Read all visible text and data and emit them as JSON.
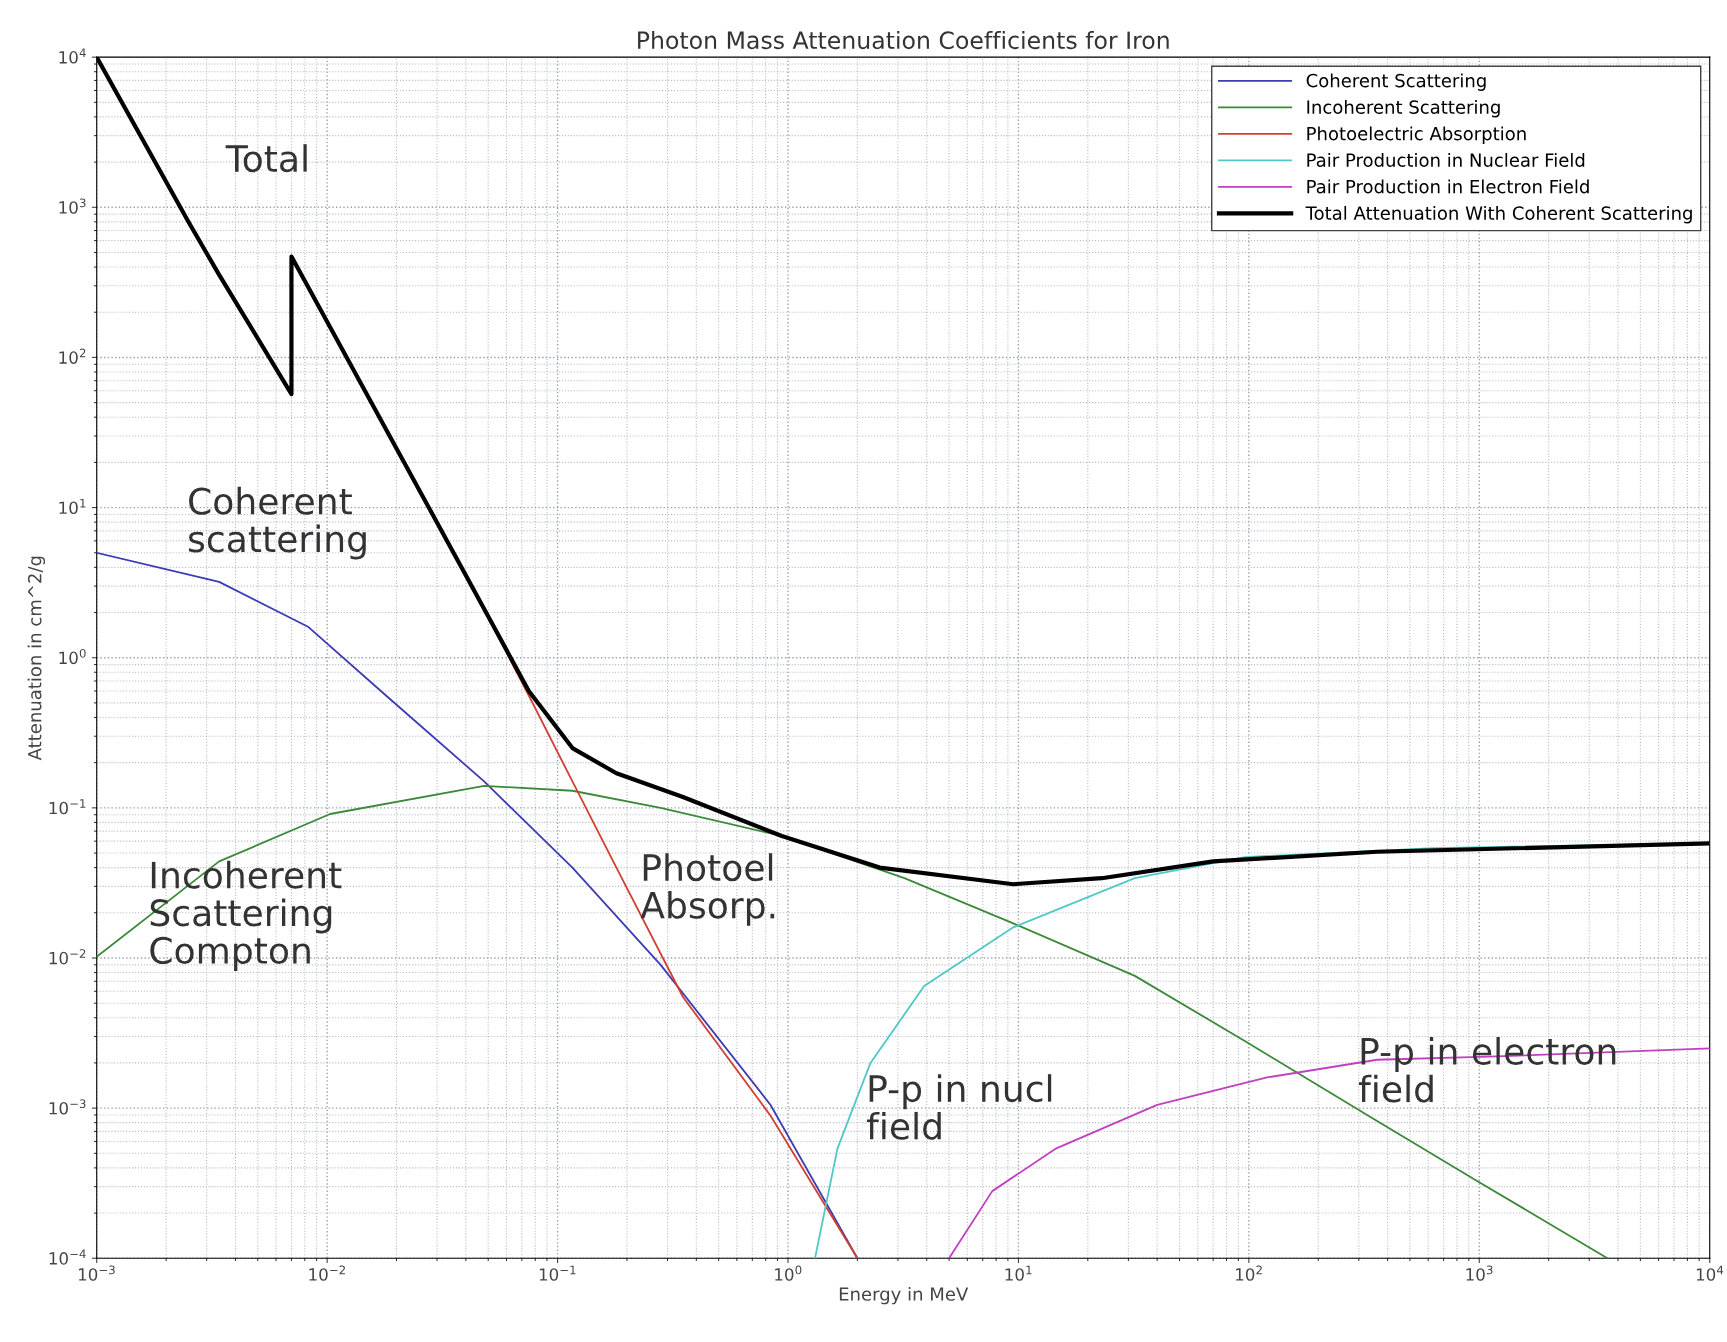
{
  "chart_data": {
    "type": "line",
    "title": "Photon Mass Attenuation Coefficients for Iron",
    "xlabel": "Energy in MeV",
    "ylabel": "Attenuation in cm^2/g",
    "log": "xy",
    "grid": true,
    "legend": "top right",
    "line_style": "solid",
    "marker": "none",
    "xlim": [
      0.001,
      10000
    ],
    "ylim": [
      0.0001,
      10000
    ],
    "xticks": [
      {
        "value": 0.001,
        "label": "10$^{−3}$"
      },
      {
        "value": 0.01,
        "label": "10$^{−2}$"
      },
      {
        "value": 0.1,
        "label": "10$^{−1}$"
      },
      {
        "value": 1,
        "label": "10$^{0}$"
      },
      {
        "value": 10,
        "label": "10$^{1}$"
      },
      {
        "value": 100,
        "label": "10$^{2}$"
      },
      {
        "value": 1000,
        "label": "10$^{3}$"
      },
      {
        "value": 10000,
        "label": "10$^{4}$"
      }
    ],
    "yticks": [
      {
        "value": 0.0001,
        "label": "10$^{−4}$"
      },
      {
        "value": 0.001,
        "label": "10$^{−3}$"
      },
      {
        "value": 0.01,
        "label": "10$^{−2}$"
      },
      {
        "value": 0.1,
        "label": "10$^{−1}$"
      },
      {
        "value": 1,
        "label": "10$^{0}$"
      },
      {
        "value": 10,
        "label": "10$^{1}$"
      },
      {
        "value": 100,
        "label": "10$^{2}$"
      },
      {
        "value": 1000,
        "label": "10$^{3}$"
      },
      {
        "value": 10000,
        "label": "10$^{4}$"
      }
    ],
    "series": [
      {
        "name": "Coherent Scattering",
        "color": "#3c3cb4",
        "x": [
          0.001,
          0.0034,
          0.0083,
          0.018,
          0.048,
          0.116,
          0.28,
          0.84,
          2.0
        ],
        "values": [
          5.0,
          3.2,
          1.6,
          0.56,
          0.15,
          0.04,
          0.009,
          0.00105,
          0.0001
        ]
      },
      {
        "name": "Incoherent Scattering",
        "color": "#3a8a3a",
        "x": [
          0.001,
          0.0034,
          0.0103,
          0.048,
          0.116,
          0.28,
          0.94,
          3.2,
          9.5,
          32,
          96,
          330,
          970,
          3600
        ],
        "values": [
          0.0102,
          0.044,
          0.091,
          0.14,
          0.13,
          0.1,
          0.065,
          0.034,
          0.017,
          0.0076,
          0.0028,
          0.00089,
          0.00033,
          0.0001
        ]
      },
      {
        "name": "Photoelectric Absorption",
        "color": "#d04030",
        "x": [
          0.043,
          0.075,
          0.116,
          0.18,
          0.35,
          0.84,
          2.0
        ],
        "values": [
          2.9,
          0.56,
          0.15,
          0.04,
          0.0055,
          0.00089,
          0.0001
        ]
      },
      {
        "name": "Pair Production in Nuclear Field",
        "color": "#50c8c8",
        "x": [
          1.31,
          1.64,
          2.28,
          3.9,
          9.5,
          32,
          96,
          630,
          10000
        ],
        "values": [
          0.0001,
          0.00054,
          0.002,
          0.0065,
          0.016,
          0.034,
          0.047,
          0.054,
          0.058
        ]
      },
      {
        "name": "Pair Production in Electron Field",
        "color": "#c040c0",
        "x": [
          5.0,
          7.7,
          14.6,
          40,
          120,
          360,
          1100,
          10000
        ],
        "values": [
          0.0001,
          0.00028,
          0.00054,
          0.00105,
          0.0016,
          0.0021,
          0.0022,
          0.0025
        ]
      },
      {
        "name": "Total Attenuation With Coherent Scattering",
        "color": "#000000",
        "x": [
          0.001,
          0.0025,
          0.0034,
          0.007,
          0.007,
          0.039,
          0.075,
          0.116,
          0.18,
          0.35,
          0.94,
          2.5,
          9.5,
          23,
          70,
          360,
          10000
        ],
        "values": [
          10000,
          800,
          355,
          57,
          470,
          3.8,
          0.6,
          0.25,
          0.17,
          0.118,
          0.065,
          0.04,
          0.031,
          0.034,
          0.044,
          0.051,
          0.058
        ]
      }
    ],
    "annotations": [
      "Total",
      "Coherent\nscattering",
      "Incoherent\nScattering\nCompton",
      "Photoel\nAbsorp.",
      "P-p in nucl\nfield",
      "P-p in electron\nfield"
    ]
  }
}
